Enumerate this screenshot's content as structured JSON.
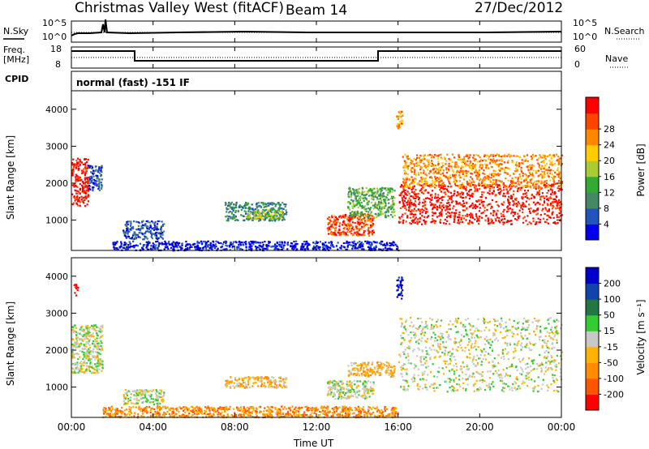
{
  "header": {
    "station": "Christmas Valley West (fitACF)",
    "beam": "Beam 14",
    "date": "27/Dec/2012"
  },
  "noise_panel": {
    "label_left": "N.Sky",
    "label_right": "N.Search",
    "ticks": [
      "10^5",
      "10^0"
    ]
  },
  "freq_panel": {
    "label_line1": "Freq.",
    "label_line2": "[MHz]",
    "ticks_left": [
      "18",
      "8"
    ],
    "ticks_right": [
      "60",
      "0"
    ],
    "label_right": "Nave"
  },
  "cpid_panel": {
    "label": "CPID",
    "text": "normal (fast) -151 IF"
  },
  "colors": {
    "power": [
      "#0000ee",
      "#2255bb",
      "#448866",
      "#33aa33",
      "#aacc33",
      "#ffcc00",
      "#ff8800",
      "#ff4400",
      "#ff0000"
    ],
    "velocity": [
      "#ff0000",
      "#ff5500",
      "#ff8c00",
      "#ffb300",
      "#c8c8c8",
      "#33cc33",
      "#227744",
      "#1144aa",
      "#0000cc"
    ],
    "ground_scatter": "#c8c8c8"
  },
  "chart_data": [
    {
      "type": "heatmap",
      "quantity": "Power",
      "ylabel": "Slant Range [km]",
      "colorbar_label": "Power [dB]",
      "colorbar_ticks": [
        "4",
        "8",
        "12",
        "16",
        "20",
        "24",
        "28"
      ],
      "yticks": [
        "1000",
        "2000",
        "3000",
        "4000"
      ],
      "ylim": [
        180,
        4500
      ],
      "xlim_hours": [
        0,
        24
      ],
      "regions": [
        {
          "t0": 0.0,
          "t1": 0.8,
          "r0": 1400,
          "r1": 2700,
          "level": 8
        },
        {
          "t0": 0.8,
          "t1": 1.5,
          "r0": 1800,
          "r1": 2500,
          "level": 1
        },
        {
          "t0": 2.5,
          "t1": 4.5,
          "r0": 500,
          "r1": 1000,
          "level": 1
        },
        {
          "t0": 7.5,
          "t1": 10.5,
          "r0": 1000,
          "r1": 1500,
          "level": 2
        },
        {
          "t0": 8.5,
          "t1": 10.3,
          "r0": 1050,
          "r1": 1300,
          "level": 4
        },
        {
          "t0": 12.5,
          "t1": 14.8,
          "r0": 600,
          "r1": 1200,
          "level": 7
        },
        {
          "t0": 13.5,
          "t1": 15.8,
          "r0": 1100,
          "r1": 1900,
          "level": 3
        },
        {
          "t0": 15.9,
          "t1": 16.2,
          "r0": 3500,
          "r1": 4000,
          "level": 6
        },
        {
          "t0": 16.0,
          "t1": 24.0,
          "r0": 900,
          "r1": 2000,
          "level": 8
        },
        {
          "t0": 16.2,
          "t1": 24.0,
          "r0": 1900,
          "r1": 2800,
          "level": 6
        },
        {
          "t0": 2.0,
          "t1": 16.0,
          "r0": 200,
          "r1": 450,
          "level": 0
        }
      ]
    },
    {
      "type": "heatmap",
      "quantity": "Velocity",
      "ylabel": "Slant Range [km]",
      "xlabel": "Time UT",
      "colorbar_label": "Velocity [m s⁻¹]",
      "colorbar_ticks": [
        "-200",
        "-100",
        "-50",
        "-15",
        "15",
        "50",
        "100",
        "200"
      ],
      "yticks": [
        "1000",
        "2000",
        "3000",
        "4000"
      ],
      "xticks": [
        "00:00",
        "04:00",
        "08:00",
        "12:00",
        "16:00",
        "20:00",
        "00:00"
      ],
      "ylim": [
        180,
        4500
      ],
      "xlim_hours": [
        0,
        24
      ],
      "regions": [
        {
          "t0": 0.0,
          "t1": 1.5,
          "r0": 1400,
          "r1": 2700,
          "level": 4
        },
        {
          "t0": 0.1,
          "t1": 0.3,
          "r0": 3500,
          "r1": 3800,
          "level": 0
        },
        {
          "t0": 2.5,
          "t1": 4.5,
          "r0": 550,
          "r1": 950,
          "level": 4
        },
        {
          "t0": 7.5,
          "t1": 10.5,
          "r0": 1000,
          "r1": 1300,
          "level": 3
        },
        {
          "t0": 12.5,
          "t1": 14.8,
          "r0": 700,
          "r1": 1200,
          "level": 4
        },
        {
          "t0": 13.5,
          "t1": 15.8,
          "r0": 1300,
          "r1": 1700,
          "level": 3
        },
        {
          "t0": 15.9,
          "t1": 16.2,
          "r0": 3400,
          "r1": 4000,
          "level": 8
        },
        {
          "t0": 16.0,
          "t1": 24.0,
          "r0": 900,
          "r1": 2900,
          "level": 4
        },
        {
          "t0": 1.5,
          "t1": 16.0,
          "r0": 200,
          "r1": 500,
          "level": 2
        }
      ]
    }
  ]
}
